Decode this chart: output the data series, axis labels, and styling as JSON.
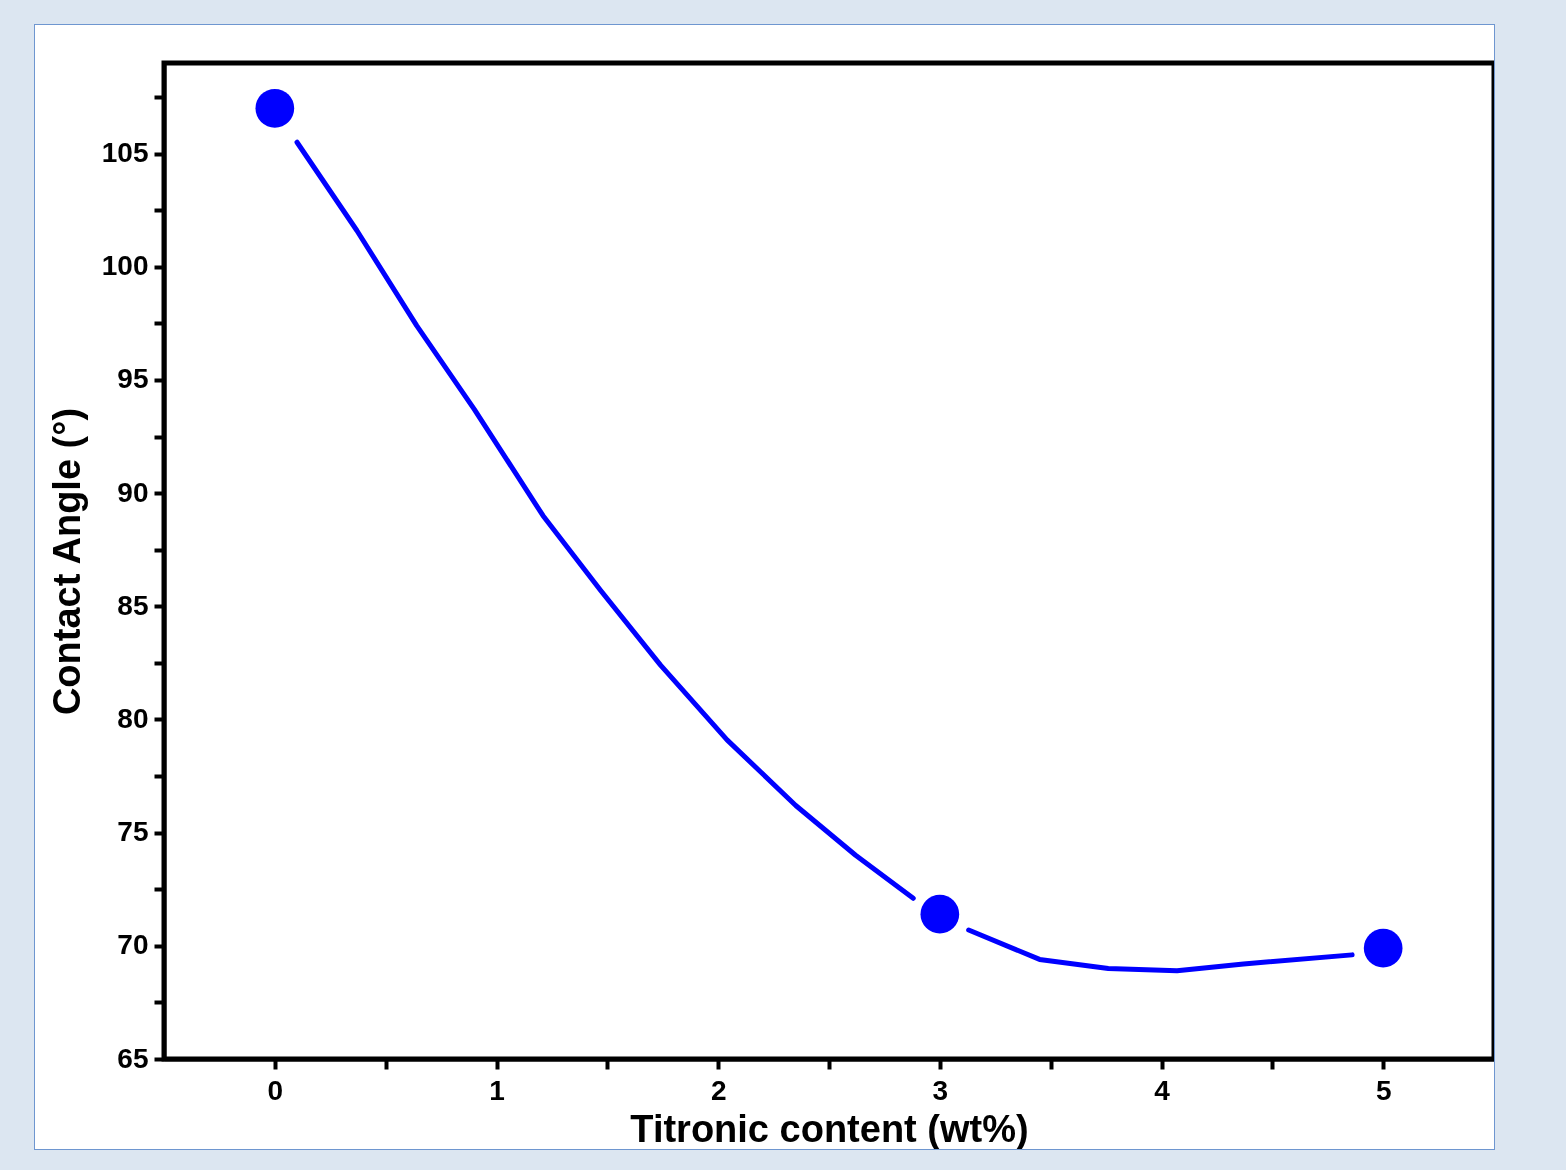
{
  "chart_data": {
    "type": "scatter",
    "xlabel": "Titronic content (wt%)",
    "ylabel": "Contact Angle (°)",
    "xlim": [
      -0.5,
      5.5
    ],
    "ylim": [
      65,
      109
    ],
    "xticks": [
      0,
      {
        "value": 0.5,
        "label": null
      },
      1,
      {
        "value": 1.5,
        "label": null
      },
      2,
      {
        "value": 2.5,
        "label": null
      },
      3,
      {
        "value": 3.5,
        "label": null
      },
      4,
      {
        "value": 4.5,
        "label": null
      },
      5
    ],
    "yticks": [
      65,
      {
        "value": 67.5,
        "label": null
      },
      70,
      {
        "value": 72.5,
        "label": null
      },
      75,
      {
        "value": 77.5,
        "label": null
      },
      80,
      {
        "value": 82.5,
        "label": null
      },
      85,
      {
        "value": 87.5,
        "label": null
      },
      90,
      {
        "value": 92.5,
        "label": null
      },
      95,
      {
        "value": 97.5,
        "label": null
      },
      100,
      {
        "value": 102.5,
        "label": null
      },
      105,
      {
        "value": 107.5,
        "label": null
      }
    ],
    "grid": false,
    "legend": false,
    "marker": "circle",
    "series": [
      {
        "type": "line",
        "color": "#0000ff",
        "marker": "none",
        "line_style": "solid",
        "x": [
          0.1,
          0.37,
          0.64,
          0.9,
          1.21,
          1.47,
          1.74,
          2.04,
          2.35,
          2.62,
          2.88,
          3.0,
          3.13,
          3.45,
          3.76,
          4.07,
          4.37,
          4.86
        ],
        "values": [
          105.5,
          101.6,
          97.4,
          93.7,
          89.0,
          85.7,
          82.4,
          79.1,
          76.2,
          74.0,
          72.1,
          null,
          70.7,
          69.4,
          69.0,
          68.9,
          69.2,
          69.6
        ]
      },
      {
        "color": "#0000ff",
        "x": [
          0,
          3,
          5
        ],
        "values": [
          107,
          71.4,
          69.9
        ]
      }
    ]
  }
}
